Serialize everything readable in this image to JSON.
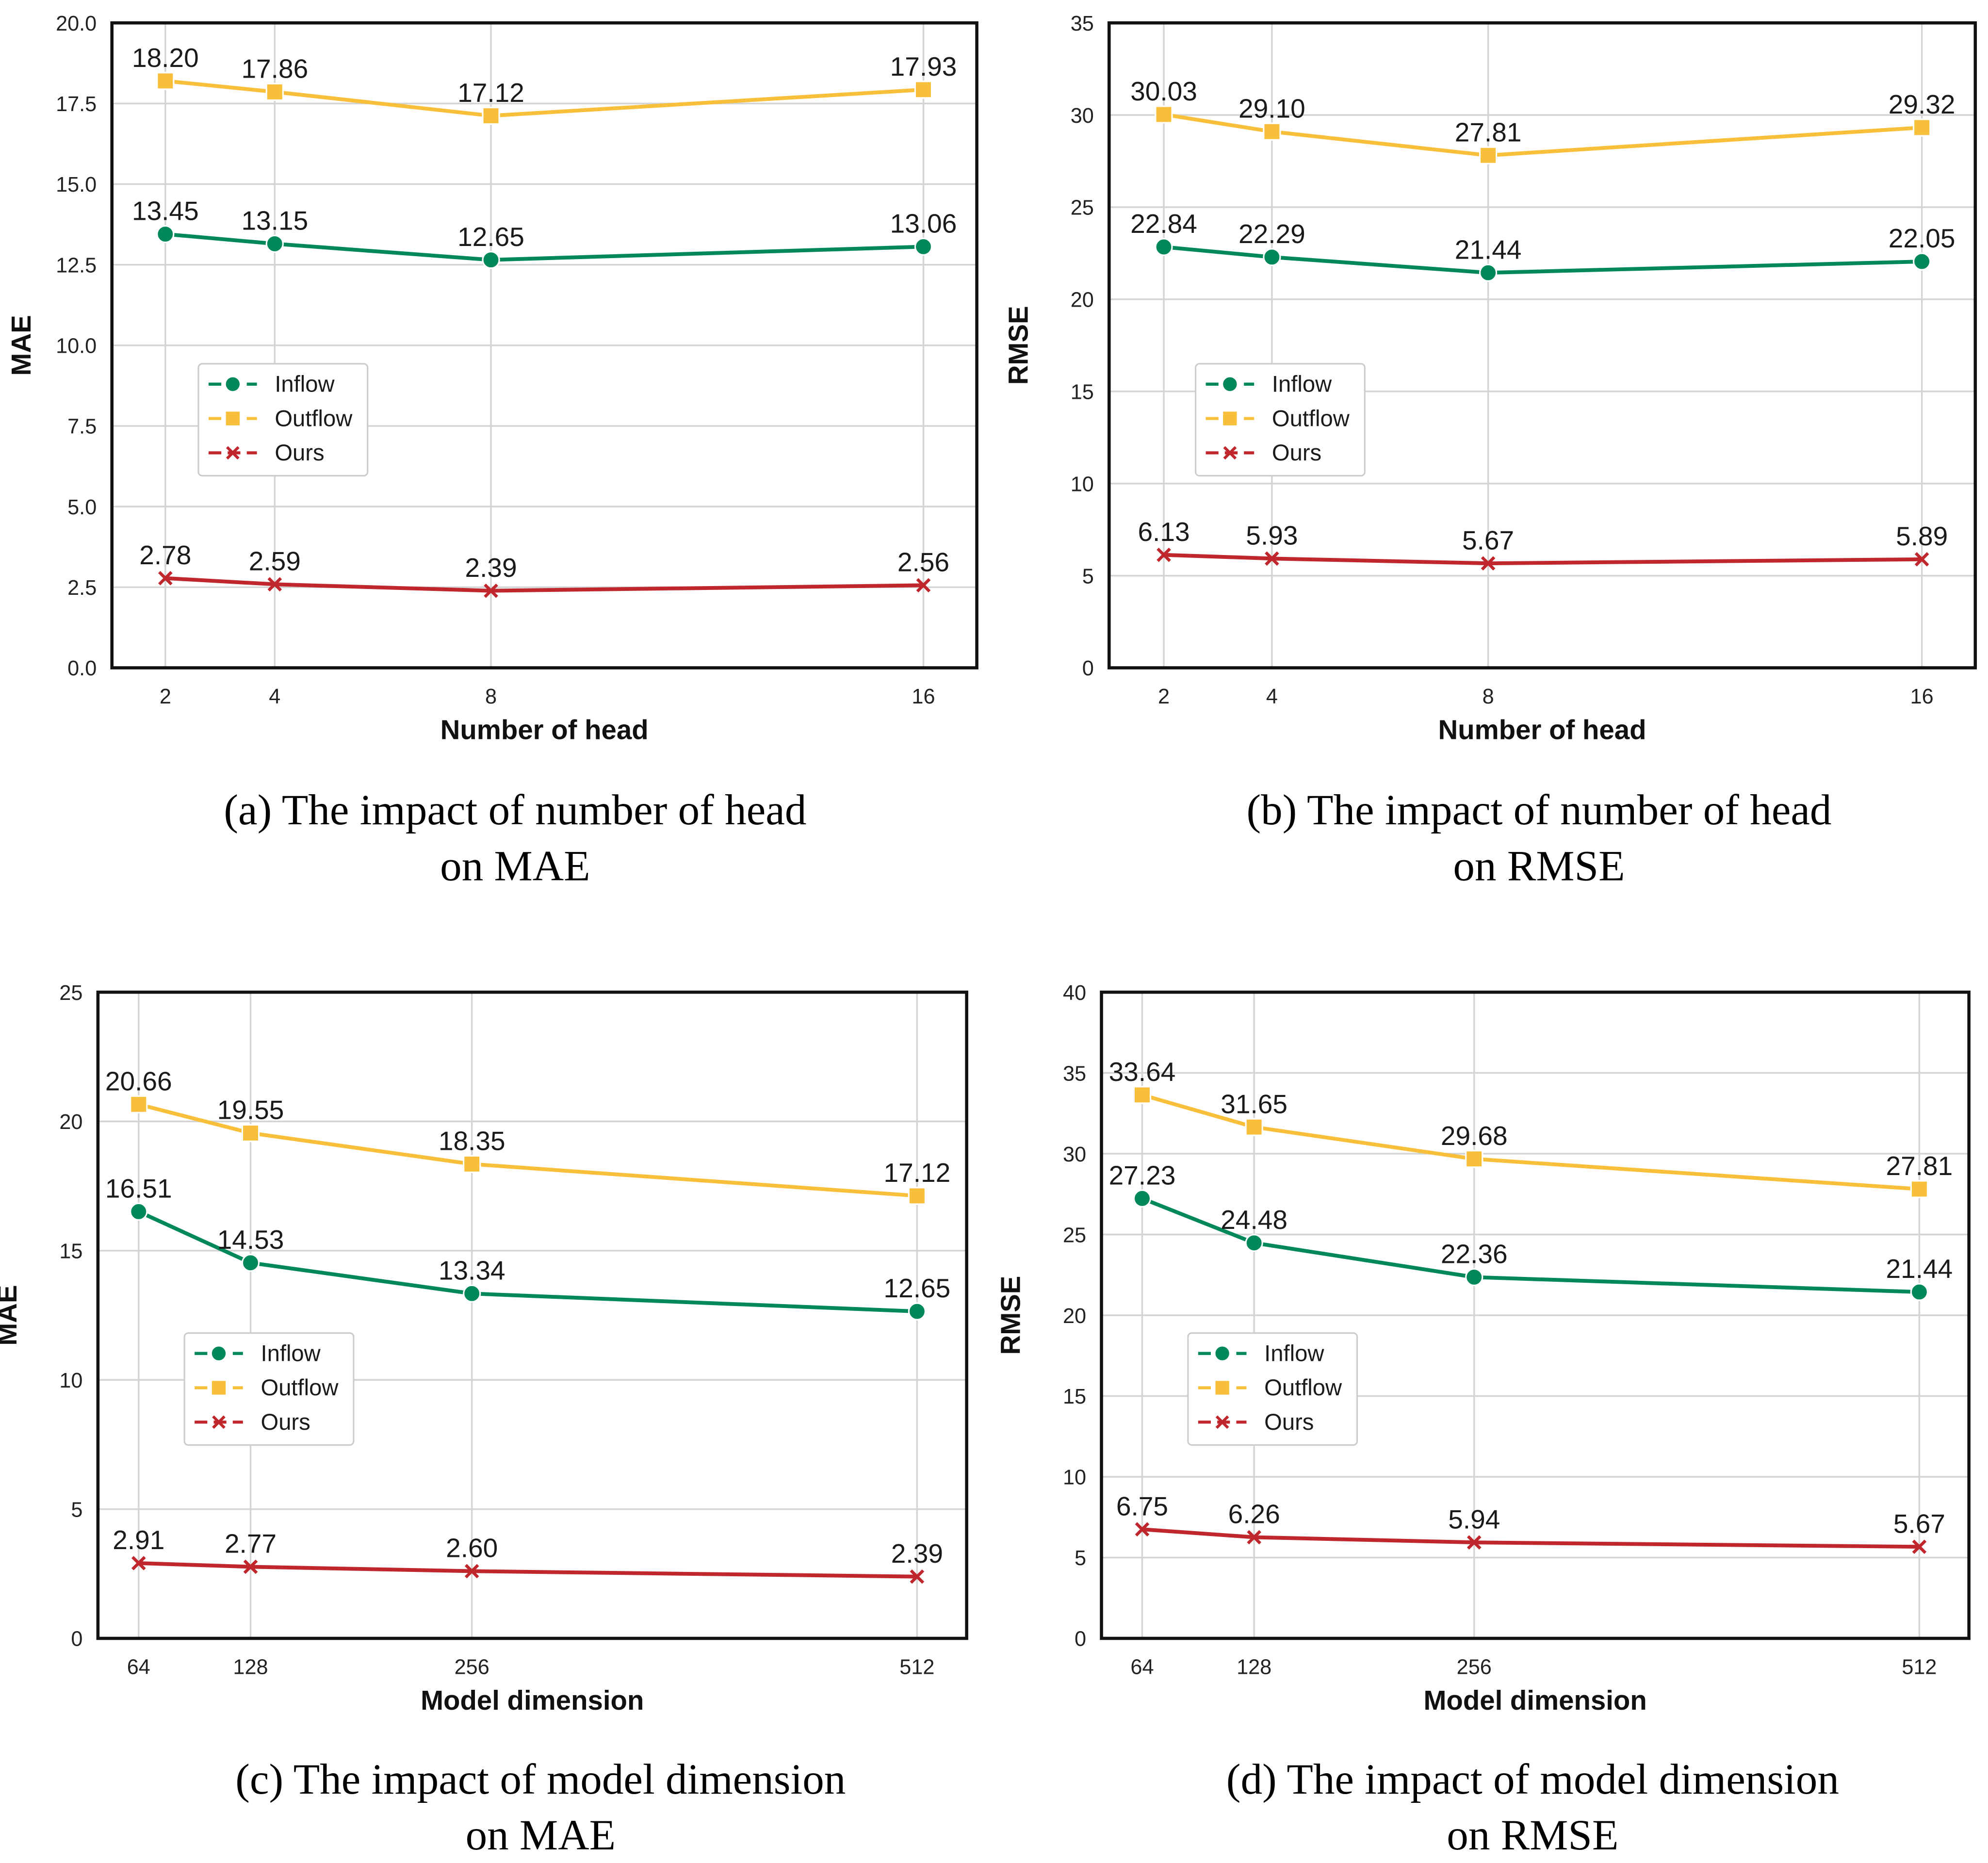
{
  "legend_labels": [
    "Inflow",
    "Outflow",
    "Ours"
  ],
  "colors": {
    "inflow": "#00875a",
    "outflow": "#f8bf3a",
    "ours": "#c0272d"
  },
  "chart_data": [
    {
      "type": "line",
      "x": [
        2,
        4,
        8,
        16
      ],
      "xticklabels": [
        "2",
        "4",
        "8",
        "16"
      ],
      "xlabel": "Number of head",
      "ylabel": "MAE",
      "ylim": [
        0,
        20
      ],
      "yticks": [
        "0.0",
        "2.5",
        "5.0",
        "7.5",
        "10.0",
        "12.5",
        "15.0",
        "17.5",
        "20.0"
      ],
      "grid": true,
      "legend": "middle-left",
      "series": [
        {
          "name": "Inflow",
          "marker": "circle",
          "values": [
            13.45,
            13.15,
            12.65,
            13.06
          ],
          "labels": [
            "13.45",
            "13.15",
            "12.65",
            "13.06"
          ]
        },
        {
          "name": "Outflow",
          "marker": "square",
          "values": [
            18.2,
            17.86,
            17.12,
            17.93
          ],
          "labels": [
            "18.20",
            "17.86",
            "17.12",
            "17.93"
          ]
        },
        {
          "name": "Ours",
          "marker": "x",
          "values": [
            2.78,
            2.59,
            2.39,
            2.56
          ],
          "labels": [
            "2.78",
            "2.59",
            "2.39",
            "2.56"
          ]
        }
      ],
      "caption": [
        "(a) The impact of number of head",
        "on MAE"
      ]
    },
    {
      "type": "line",
      "x": [
        2,
        4,
        8,
        16
      ],
      "xticklabels": [
        "2",
        "4",
        "8",
        "16"
      ],
      "xlabel": "Number of head",
      "ylabel": "RMSE",
      "ylim": [
        0,
        35
      ],
      "yticks": [
        "0",
        "5",
        "10",
        "15",
        "20",
        "25",
        "30",
        "35"
      ],
      "grid": true,
      "legend": "middle-left",
      "series": [
        {
          "name": "Inflow",
          "marker": "circle",
          "values": [
            22.84,
            22.29,
            21.44,
            22.05
          ],
          "labels": [
            "22.84",
            "22.29",
            "21.44",
            "22.05"
          ]
        },
        {
          "name": "Outflow",
          "marker": "square",
          "values": [
            30.03,
            29.1,
            27.81,
            29.32
          ],
          "labels": [
            "30.03",
            "29.10",
            "27.81",
            "29.32"
          ]
        },
        {
          "name": "Ours",
          "marker": "x",
          "values": [
            6.13,
            5.93,
            5.67,
            5.89
          ],
          "labels": [
            "6.13",
            "5.93",
            "5.67",
            "5.89"
          ]
        }
      ],
      "caption": [
        "(b) The impact of number of head",
        "on RMSE"
      ]
    },
    {
      "type": "line",
      "x": [
        64,
        128,
        256,
        512
      ],
      "xticklabels": [
        "64",
        "128",
        "256",
        "512"
      ],
      "xlabel": "Model dimension",
      "ylabel": "MAE",
      "ylim": [
        0,
        25
      ],
      "yticks": [
        "0",
        "5",
        "10",
        "15",
        "20",
        "25"
      ],
      "grid": true,
      "legend": "middle-left",
      "series": [
        {
          "name": "Inflow",
          "marker": "circle",
          "values": [
            16.51,
            14.53,
            13.34,
            12.65
          ],
          "labels": [
            "16.51",
            "14.53",
            "13.34",
            "12.65"
          ]
        },
        {
          "name": "Outflow",
          "marker": "square",
          "values": [
            20.66,
            19.55,
            18.35,
            17.12
          ],
          "labels": [
            "20.66",
            "19.55",
            "18.35",
            "17.12"
          ]
        },
        {
          "name": "Ours",
          "marker": "x",
          "values": [
            2.91,
            2.77,
            2.6,
            2.39
          ],
          "labels": [
            "2.91",
            "2.77",
            "2.60",
            "2.39"
          ]
        }
      ],
      "caption": [
        "(c) The impact of model dimension",
        "on MAE"
      ]
    },
    {
      "type": "line",
      "x": [
        64,
        128,
        256,
        512
      ],
      "xticklabels": [
        "64",
        "128",
        "256",
        "512"
      ],
      "xlabel": "Model dimension",
      "ylabel": "RMSE",
      "ylim": [
        0,
        40
      ],
      "yticks": [
        "0",
        "5",
        "10",
        "15",
        "20",
        "25",
        "30",
        "35",
        "40"
      ],
      "grid": true,
      "legend": "middle-left",
      "series": [
        {
          "name": "Inflow",
          "marker": "circle",
          "values": [
            27.23,
            24.48,
            22.36,
            21.44
          ],
          "labels": [
            "27.23",
            "24.48",
            "22.36",
            "21.44"
          ]
        },
        {
          "name": "Outflow",
          "marker": "square",
          "values": [
            33.64,
            31.65,
            29.68,
            27.81
          ],
          "labels": [
            "33.64",
            "31.65",
            "29.68",
            "27.81"
          ]
        },
        {
          "name": "Ours",
          "marker": "x",
          "values": [
            6.75,
            6.26,
            5.94,
            5.67
          ],
          "labels": [
            "6.75",
            "6.26",
            "5.94",
            "5.67"
          ]
        }
      ],
      "caption": [
        "(d) The impact of model dimension",
        "on RMSE"
      ]
    }
  ]
}
